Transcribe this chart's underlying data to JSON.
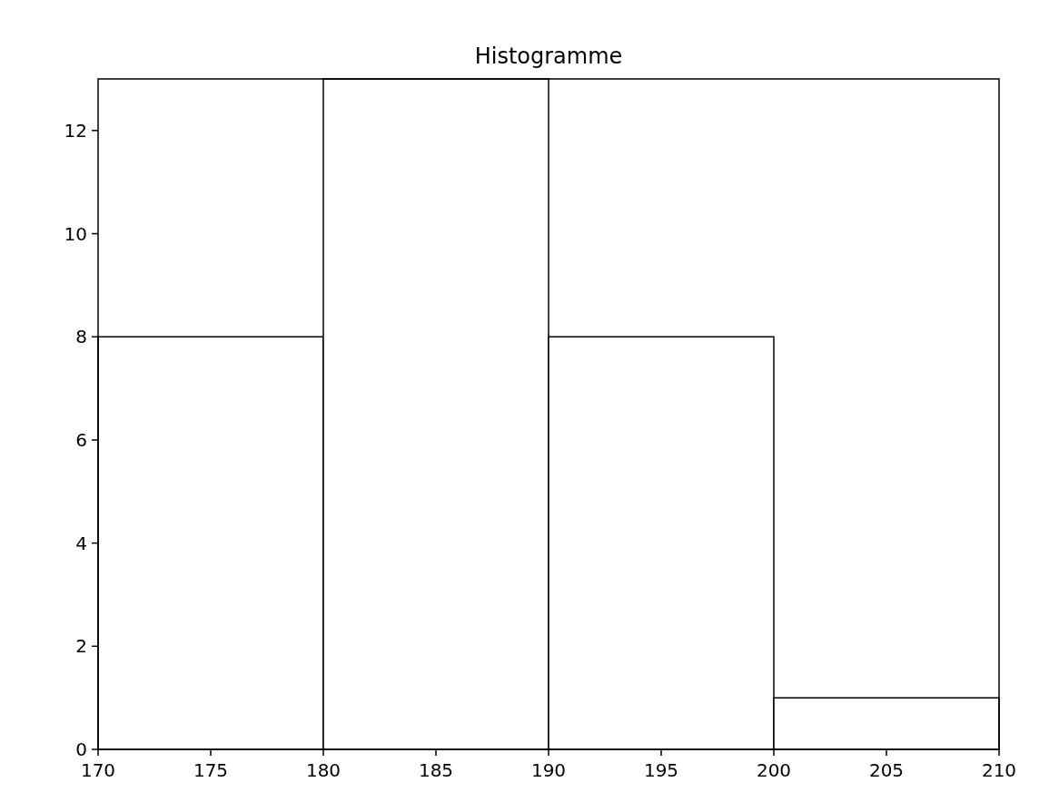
{
  "chart_data": {
    "type": "histogram",
    "title": "Histogramme",
    "bins": [
      170,
      180,
      190,
      200,
      210
    ],
    "values": [
      8,
      13,
      8,
      1
    ],
    "color": "#ffffff",
    "xlim": [
      170,
      210
    ],
    "xticks": [
      170,
      175,
      180,
      185,
      190,
      195,
      200,
      205,
      210
    ],
    "ylim": [
      0,
      13
    ],
    "yticks": [
      0,
      2,
      4,
      6,
      8,
      10,
      12
    ],
    "grid": false
  }
}
